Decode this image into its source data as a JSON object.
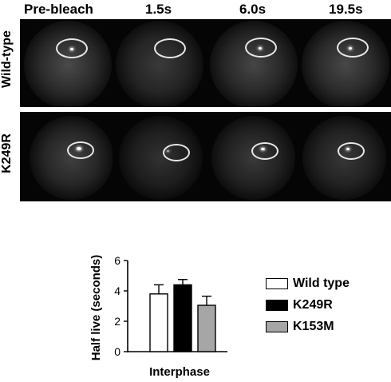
{
  "micrographs": {
    "time_labels": [
      "Pre-bleach",
      "1.5s",
      "6.0s",
      "19.5s"
    ],
    "rows": [
      {
        "label": "Wild-type",
        "spot_intensity": [
          0.9,
          0.05,
          0.6,
          0.75
        ]
      },
      {
        "label": "K249R",
        "spot_intensity": [
          1.0,
          0.3,
          0.7,
          0.5
        ]
      }
    ]
  },
  "chart_data": {
    "type": "bar",
    "ylabel": "Half live (seconds)",
    "xlabel": "Interphase",
    "ylim": [
      0,
      6
    ],
    "yticks": [
      "0",
      "2",
      "4",
      "6"
    ],
    "series": [
      {
        "name": "Wild type",
        "value": 3.8,
        "error": 0.6,
        "color": "#ffffff"
      },
      {
        "name": "K249R",
        "value": 4.4,
        "error": 0.35,
        "color": "#000000"
      },
      {
        "name": "K153M",
        "value": 3.05,
        "error": 0.6,
        "color": "#a6a6a6"
      }
    ]
  }
}
